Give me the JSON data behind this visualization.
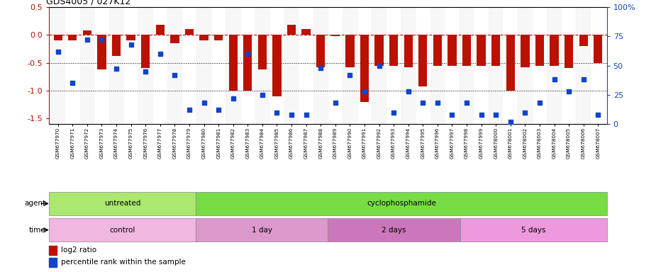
{
  "title": "GDS4005 / 027K12",
  "samples": [
    "GSM677970",
    "GSM677971",
    "GSM677972",
    "GSM677973",
    "GSM677974",
    "GSM677975",
    "GSM677976",
    "GSM677977",
    "GSM677978",
    "GSM677979",
    "GSM677980",
    "GSM677981",
    "GSM677982",
    "GSM677983",
    "GSM677984",
    "GSM677985",
    "GSM677986",
    "GSM677987",
    "GSM677988",
    "GSM677989",
    "GSM677990",
    "GSM677991",
    "GSM677992",
    "GSM677993",
    "GSM677994",
    "GSM677995",
    "GSM677996",
    "GSM677997",
    "GSM677998",
    "GSM677999",
    "GSM678000",
    "GSM678001",
    "GSM678002",
    "GSM678003",
    "GSM678004",
    "GSM678005",
    "GSM678006",
    "GSM678007"
  ],
  "log2_ratio": [
    -0.1,
    -0.1,
    0.08,
    -0.62,
    -0.38,
    -0.1,
    -0.6,
    0.18,
    -0.15,
    0.1,
    -0.1,
    -0.1,
    -1.0,
    -1.0,
    -0.62,
    -1.1,
    0.18,
    0.1,
    -0.58,
    -0.02,
    -0.58,
    -1.2,
    -0.55,
    -0.55,
    -0.58,
    -0.92,
    -0.55,
    -0.55,
    -0.55,
    -0.55,
    -0.55,
    -1.0,
    -0.58,
    -0.55,
    -0.55,
    -0.6,
    -0.2,
    -0.5
  ],
  "percentile": [
    62,
    35,
    72,
    72,
    47,
    68,
    45,
    60,
    42,
    12,
    18,
    12,
    22,
    60,
    25,
    10,
    8,
    8,
    48,
    18,
    42,
    28,
    50,
    10,
    28,
    18,
    18,
    8,
    18,
    8,
    8,
    2,
    10,
    18,
    38,
    28,
    38,
    8
  ],
  "bar_color": "#bb1100",
  "dot_color": "#1144cc",
  "ylim_left": [
    -1.6,
    0.5
  ],
  "ylim_right": [
    0,
    100
  ],
  "yticks_left": [
    0.5,
    0.0,
    -0.5,
    -1.0,
    -1.5
  ],
  "yticks_right": [
    0,
    25,
    50,
    75,
    100
  ],
  "untreated_count": 10,
  "time_groups": [
    {
      "label": "control",
      "start": 0,
      "end": 10,
      "color": "#f0b8e0"
    },
    {
      "label": "1 day",
      "start": 10,
      "end": 19,
      "color": "#dd99cc"
    },
    {
      "label": "2 days",
      "start": 19,
      "end": 28,
      "color": "#cc77bb"
    },
    {
      "label": "5 days",
      "start": 28,
      "end": 38,
      "color": "#ee99dd"
    }
  ],
  "agent_untreated_color": "#aae870",
  "agent_cyclo_color": "#77dd44",
  "background_color": "#f0f0f0"
}
